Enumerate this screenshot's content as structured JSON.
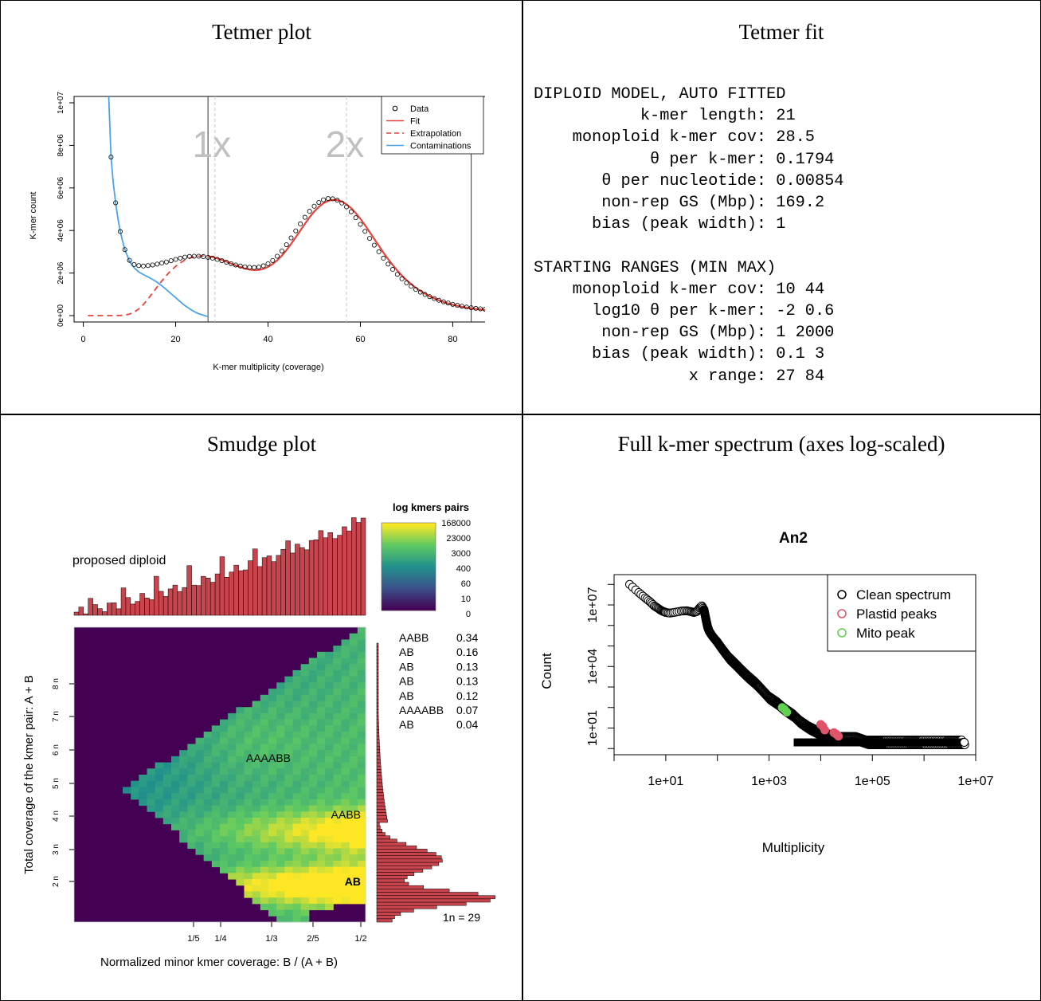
{
  "panels": {
    "tetmer_plot_title": "Tetmer plot",
    "tetmer_fit_title": "Tetmer fit",
    "smudge_title": "Smudge plot",
    "spectrum_title": "Full k-mer spectrum (axes log-scaled)"
  },
  "tetmer_fit": {
    "header1": "DIPLOID MODEL, AUTO FITTED",
    "fitted": [
      {
        "label": "k-mer length",
        "value": "21"
      },
      {
        "label": "monoploid k-mer cov",
        "value": "28.5"
      },
      {
        "label": "θ per k-mer",
        "value": "0.1794"
      },
      {
        "label": "θ per nucleotide",
        "value": "0.00854"
      },
      {
        "label": "non-rep GS (Mbp)",
        "value": "169.2"
      },
      {
        "label": "bias (peak width)",
        "value": "1"
      }
    ],
    "header2": "STARTING RANGES (MIN MAX)",
    "ranges": [
      {
        "label": "monoploid k-mer cov",
        "value": "10 44"
      },
      {
        "label": "log10 θ per k-mer",
        "value": "-2 0.6"
      },
      {
        "label": "non-rep GS (Mbp)",
        "value": "1 2000"
      },
      {
        "label": "bias (peak width)",
        "value": "0.1 3"
      },
      {
        "label": "x range",
        "value": "27 84"
      }
    ]
  },
  "chart_data": [
    {
      "type": "line",
      "title": "",
      "xlabel": "K-mer multiplicity (coverage)",
      "ylabel": "K-mer count",
      "xlim": [
        -2,
        87
      ],
      "ylim": [
        -300000,
        10300000
      ],
      "xticks": [
        0,
        20,
        40,
        60,
        80
      ],
      "yticks": [
        0,
        2000000,
        4000000,
        6000000,
        8000000,
        10000000
      ],
      "ytick_labels": [
        "0e+00",
        "2e+06",
        "4e+06",
        "6e+06",
        "8e+06",
        "1e+07"
      ],
      "legend_position": "top-right",
      "legend": [
        "Data",
        "Fit",
        "Extrapolation",
        "Contaminations"
      ],
      "peak_labels": [
        {
          "text": "1x",
          "x": 28.5
        },
        {
          "text": "2x",
          "x": 57
        }
      ],
      "vlines_solid": [
        27,
        84
      ],
      "vlines_dashed": [
        28.5,
        57
      ],
      "colors": {
        "fit": "#e8433a",
        "contamination": "#4aa3e8",
        "data": "#000000",
        "peak_label": "#c0c0c0"
      },
      "series": [
        {
          "name": "Data",
          "x": [
            6,
            7,
            8,
            9,
            10,
            11,
            12,
            13,
            14,
            15,
            16,
            17,
            18,
            19,
            20,
            21,
            22,
            23,
            24,
            25,
            26,
            27,
            28,
            29,
            30,
            31,
            32,
            33,
            34,
            35,
            36,
            37,
            38,
            39,
            40,
            41,
            42,
            43,
            44,
            45,
            46,
            47,
            48,
            49,
            50,
            51,
            52,
            53,
            54,
            55,
            56,
            57,
            58,
            59,
            60,
            61,
            62,
            63,
            64,
            65,
            66,
            67,
            68,
            69,
            70,
            71,
            72,
            73,
            74,
            75,
            76,
            77,
            78,
            79,
            80,
            81,
            82,
            83,
            84,
            85,
            86,
            87
          ],
          "y": [
            7450000,
            5300000,
            3950000,
            3100000,
            2600000,
            2400000,
            2350000,
            2330000,
            2350000,
            2380000,
            2420000,
            2470000,
            2520000,
            2580000,
            2640000,
            2700000,
            2750000,
            2780000,
            2790000,
            2790000,
            2770000,
            2740000,
            2700000,
            2640000,
            2580000,
            2510000,
            2440000,
            2380000,
            2330000,
            2290000,
            2270000,
            2260000,
            2280000,
            2340000,
            2440000,
            2590000,
            2790000,
            3040000,
            3330000,
            3650000,
            3980000,
            4310000,
            4620000,
            4900000,
            5140000,
            5320000,
            5440000,
            5500000,
            5490000,
            5420000,
            5290000,
            5110000,
            4880000,
            4600000,
            4290000,
            3960000,
            3630000,
            3310000,
            3000000,
            2700000,
            2420000,
            2170000,
            1940000,
            1730000,
            1540000,
            1380000,
            1230000,
            1100000,
            990000,
            890000,
            800000,
            720000,
            650000,
            590000,
            530000,
            480000,
            440000,
            400000,
            370000,
            340000,
            320000,
            300000
          ]
        },
        {
          "name": "Fit",
          "x": [
            27,
            28,
            29,
            30,
            31,
            32,
            33,
            34,
            35,
            36,
            37,
            38,
            39,
            40,
            41,
            42,
            43,
            44,
            45,
            46,
            47,
            48,
            49,
            50,
            51,
            52,
            53,
            54,
            55,
            56,
            57,
            58,
            59,
            60,
            61,
            62,
            63,
            64,
            65,
            66,
            67,
            68,
            69,
            70,
            71,
            72,
            73,
            74,
            75,
            76,
            77,
            78,
            79,
            80,
            81,
            82,
            83,
            84,
            85,
            86,
            87
          ],
          "y": [
            2790000,
            2750000,
            2690000,
            2620000,
            2540000,
            2450000,
            2360000,
            2280000,
            2210000,
            2160000,
            2140000,
            2150000,
            2200000,
            2290000,
            2420000,
            2600000,
            2820000,
            3080000,
            3370000,
            3680000,
            4000000,
            4320000,
            4620000,
            4890000,
            5110000,
            5280000,
            5390000,
            5440000,
            5430000,
            5360000,
            5230000,
            5050000,
            4820000,
            4550000,
            4250000,
            3930000,
            3600000,
            3280000,
            2960000,
            2660000,
            2380000,
            2120000,
            1880000,
            1670000,
            1480000,
            1310000,
            1160000,
            1030000,
            910000,
            810000,
            720000,
            640000,
            570000,
            510000,
            460000,
            410000,
            370000,
            340000,
            310000,
            290000,
            270000
          ]
        },
        {
          "name": "Extrapolation",
          "x": [
            1,
            2,
            3,
            4,
            5,
            6,
            7,
            8,
            9,
            10,
            11,
            12,
            13,
            14,
            15,
            16,
            17,
            18,
            19,
            20,
            21,
            22,
            23,
            24,
            25,
            26,
            27
          ],
          "y": [
            0,
            0,
            0,
            0,
            0,
            0,
            2000,
            8000,
            25000,
            70000,
            160000,
            310000,
            520000,
            780000,
            1060000,
            1350000,
            1630000,
            1890000,
            2120000,
            2320000,
            2480000,
            2610000,
            2700000,
            2760000,
            2790000,
            2800000,
            2790000
          ]
        },
        {
          "name": "Contaminations",
          "x": [
            5.5,
            6,
            6.5,
            7,
            7.5,
            8,
            8.5,
            9,
            10,
            11,
            12,
            13,
            14,
            15,
            16,
            17,
            18,
            19,
            20,
            21,
            22,
            23,
            24,
            25,
            26,
            27
          ],
          "y": [
            10300000,
            7450000,
            6200000,
            5300000,
            4550000,
            3950000,
            3500000,
            3100000,
            2550000,
            2250000,
            2050000,
            1930000,
            1820000,
            1700000,
            1560000,
            1400000,
            1220000,
            1030000,
            840000,
            650000,
            470000,
            320000,
            190000,
            90000,
            20000,
            -50000
          ]
        }
      ]
    },
    {
      "type": "heatmap",
      "title": "",
      "text_label": "proposed diploid",
      "xlabel": "Normalized minor kmer coverage: B / (A + B)",
      "ylabel": "Total coverage of the kmer pair: A + B",
      "xtick_labels": [
        "1/5",
        "1/4",
        "1/3",
        "2/5",
        "1/2"
      ],
      "ytick_labels": [
        "2 n",
        "3 n",
        "4 n",
        "5 n",
        "6 n",
        "7 n",
        "8 n"
      ],
      "colorbar_title": "log kmers pairs",
      "colorbar_labels": [
        "168000",
        "23000",
        "3000",
        "400",
        "60",
        "10",
        "0"
      ],
      "smudge_labels": [
        "AB",
        "AABB",
        "AAAABB"
      ],
      "summary": [
        {
          "label": "AABB",
          "value": "0.34"
        },
        {
          "label": "AB",
          "value": "0.16"
        },
        {
          "label": "AB",
          "value": "0.13"
        },
        {
          "label": "AB",
          "value": "0.13"
        },
        {
          "label": "AB",
          "value": "0.12"
        },
        {
          "label": "AAAABB",
          "value": "0.07"
        },
        {
          "label": "AB",
          "value": "0.04"
        }
      ],
      "coverage_note": "1n =  29",
      "colors": {
        "bars": "#c9444d",
        "background": "#440154"
      }
    },
    {
      "type": "scatter",
      "title": "An2",
      "xlabel": "Multiplicity",
      "ylabel": "Count",
      "log_x": true,
      "log_y": true,
      "xticks": [
        "1e+01",
        "1e+03",
        "1e+05",
        "1e+07"
      ],
      "yticks": [
        "1e+01",
        "1e+04",
        "1e+07"
      ],
      "xlim": [
        1,
        10000000
      ],
      "ylim": [
        0.5,
        300000000
      ],
      "legend_position": "top-right",
      "legend": [
        "Clean spectrum",
        "Plastid peaks",
        "Mito peak"
      ],
      "colors": {
        "clean": "#000000",
        "plastid": "#df536b",
        "mito": "#61d04f"
      },
      "series": [
        {
          "name": "Clean spectrum",
          "x": [
            2,
            3,
            4,
            5,
            6,
            7,
            8,
            9,
            10,
            12,
            15,
            20,
            25,
            30,
            35,
            40,
            45,
            50,
            55,
            60,
            65,
            70,
            80,
            100,
            130,
            170,
            230,
            300,
            400,
            550,
            700,
            1000,
            1500,
            2000,
            3000,
            4000,
            6000,
            8000,
            10000,
            15000,
            20000,
            30000,
            50000,
            80000,
            120000,
            200000,
            500000,
            1000000,
            3000000,
            6000000
          ],
          "y": [
            100000000,
            40000000,
            22000000,
            14000000,
            9000000,
            7000000,
            5500000,
            4800000,
            4300000,
            4000000,
            4400000,
            5000000,
            5200000,
            4800000,
            4300000,
            4800000,
            7000000,
            9000000,
            6000000,
            2000000,
            800000,
            500000,
            300000,
            150000,
            60000,
            25000,
            12000,
            6000,
            3000,
            1500,
            800,
            300,
            150,
            80,
            40,
            20,
            10,
            7,
            5,
            4,
            3,
            3,
            3,
            2,
            2,
            2,
            2,
            2,
            2,
            2
          ]
        },
        {
          "name": "Plastid peaks",
          "x": [
            10000,
            11000,
            12000,
            18000,
            20000,
            22000
          ],
          "y": [
            15,
            12,
            8,
            6,
            5,
            4
          ]
        },
        {
          "name": "Mito peak",
          "x": [
            1800,
            2000,
            2200
          ],
          "y": [
            100,
            80,
            60
          ]
        }
      ]
    }
  ]
}
